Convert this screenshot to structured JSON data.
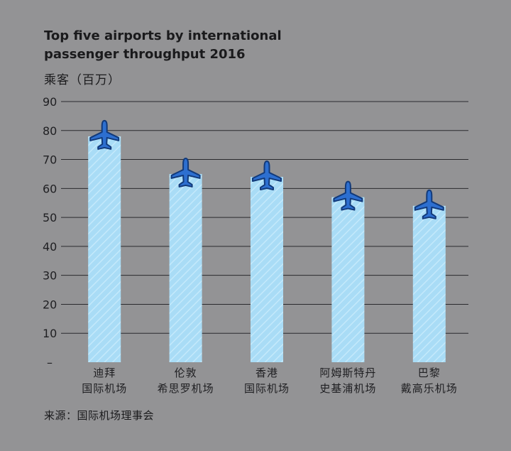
{
  "chart_data": {
    "type": "bar",
    "title": "Top five airports by international passenger throughput 2016",
    "ylabel": "乘客（百万）",
    "categories": [
      [
        "迪拜",
        "国际机场"
      ],
      [
        "伦敦",
        "希思罗机场"
      ],
      [
        "香港",
        "国际机场"
      ],
      [
        "阿姆斯特丹",
        "史基浦机场"
      ],
      [
        "巴黎",
        "戴高乐机场"
      ]
    ],
    "values": [
      78,
      65,
      64,
      57,
      54
    ],
    "ylim": [
      0,
      90
    ],
    "yticks": [
      10,
      20,
      30,
      40,
      50,
      60,
      70,
      80,
      90
    ],
    "zero_tick_label": "–",
    "grid": true,
    "source": "来源：国际机场理事会",
    "colors": {
      "bar": "#a9dcf6",
      "bar_hatch": "#c4e9fb",
      "plane": "#2d6fd0",
      "plane_outline": "#123a7a",
      "grid": "#2a2a2e"
    },
    "marker_icon": "airplane-icon"
  }
}
